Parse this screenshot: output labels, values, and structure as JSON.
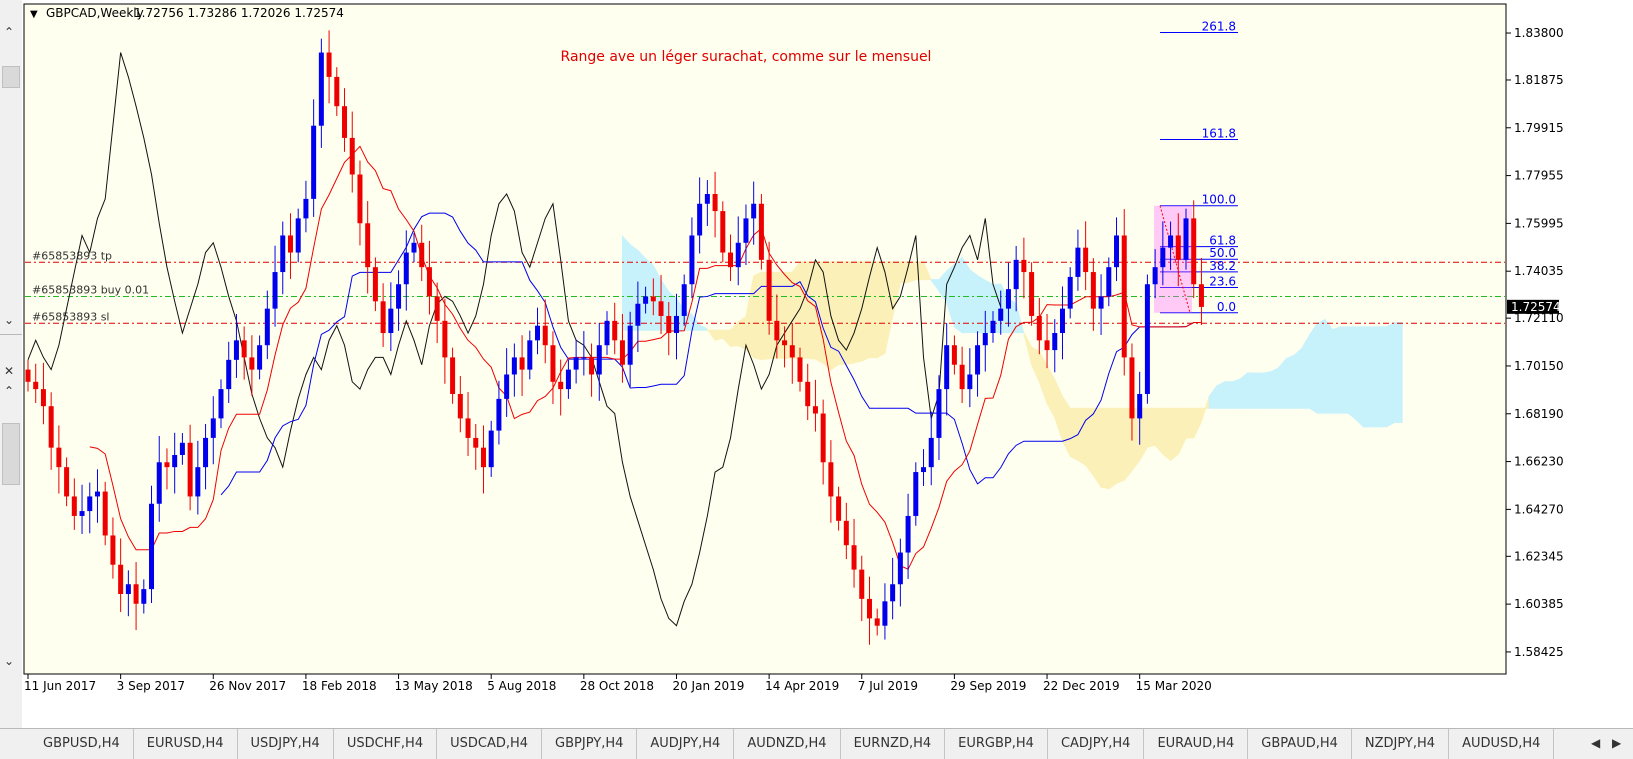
{
  "header": {
    "symbol": "GBPCAD,Weekly",
    "ohlc": "1.72756 1.73286 1.72026 1.72574"
  },
  "annotation": "Range ave un léger surachat, comme sur le mensuel",
  "orders": [
    {
      "label": "#65853893 tp",
      "price": 1.744,
      "color": "#e00000"
    },
    {
      "label": "#65853893 buy 0.01",
      "price": 1.73,
      "color": "#22bb22"
    },
    {
      "label": "#65853893 sl",
      "price": 1.719,
      "color": "#e00000"
    }
  ],
  "fibonacci": {
    "low": 1.7233,
    "high": 1.7672,
    "color": "#0000ff",
    "levels": [
      {
        "label": "261.8",
        "value": 2.618
      },
      {
        "label": "161.8",
        "value": 1.618
      },
      {
        "label": "100.0",
        "value": 1.0
      },
      {
        "label": "61.8",
        "value": 0.618
      },
      {
        "label": "50.0",
        "value": 0.5
      },
      {
        "label": "38.2",
        "value": 0.382
      },
      {
        "label": "23.6",
        "value": 0.236
      },
      {
        "label": "0.0",
        "value": 0.0
      }
    ]
  },
  "chart_data": {
    "type": "candlestick",
    "title": "GBPCAD,Weekly",
    "x_start": "11 Jun 2017",
    "interval": "1 week",
    "ylim": [
      1.5752,
      1.8499
    ],
    "grid": false,
    "x_ticks": [
      {
        "label": "11 Jun 2017",
        "index": 0
      },
      {
        "label": "3 Sep 2017",
        "index": 12
      },
      {
        "label": "26 Nov 2017",
        "index": 24
      },
      {
        "label": "18 Feb 2018",
        "index": 36
      },
      {
        "label": "13 May 2018",
        "index": 48
      },
      {
        "label": "5 Aug 2018",
        "index": 60
      },
      {
        "label": "28 Oct 2018",
        "index": 72
      },
      {
        "label": "20 Jan 2019",
        "index": 84
      },
      {
        "label": "14 Apr 2019",
        "index": 96
      },
      {
        "label": "7 Jul 2019",
        "index": 108
      },
      {
        "label": "29 Sep 2019",
        "index": 120
      },
      {
        "label": "22 Dec 2019",
        "index": 132
      },
      {
        "label": "15 Mar 2020",
        "index": 144
      }
    ],
    "y_ticks": [
      "1.83800",
      "1.81875",
      "1.79915",
      "1.77955",
      "1.75995",
      "1.74035",
      "1.72110",
      "1.70150",
      "1.68190",
      "1.66230",
      "1.64270",
      "1.62345",
      "1.60385",
      "1.58425"
    ],
    "current_price": "1.72574",
    "close": [
      1.695,
      1.692,
      1.685,
      1.668,
      1.66,
      1.648,
      1.64,
      1.642,
      1.648,
      1.65,
      1.632,
      1.62,
      1.608,
      1.612,
      1.604,
      1.61,
      1.645,
      1.662,
      1.66,
      1.665,
      1.67,
      1.648,
      1.66,
      1.672,
      1.68,
      1.692,
      1.704,
      1.712,
      1.705,
      1.7,
      1.71,
      1.725,
      1.74,
      1.755,
      1.748,
      1.762,
      1.77,
      1.8,
      1.83,
      1.82,
      1.808,
      1.795,
      1.78,
      1.76,
      1.742,
      1.728,
      1.715,
      1.725,
      1.735,
      1.748,
      1.752,
      1.742,
      1.73,
      1.72,
      1.705,
      1.69,
      1.68,
      1.672,
      1.668,
      1.66,
      1.675,
      1.688,
      1.698,
      1.705,
      1.7,
      1.712,
      1.718,
      1.71,
      1.695,
      1.692,
      1.7,
      1.705,
      1.705,
      1.698,
      1.71,
      1.72,
      1.712,
      1.702,
      1.718,
      1.727,
      1.73,
      1.728,
      1.722,
      1.715,
      1.722,
      1.735,
      1.755,
      1.768,
      1.772,
      1.765,
      1.748,
      1.742,
      1.752,
      1.762,
      1.768,
      1.745,
      1.72,
      1.712,
      1.71,
      1.705,
      1.695,
      1.685,
      1.682,
      1.662,
      1.648,
      1.638,
      1.628,
      1.618,
      1.606,
      1.598,
      1.595,
      1.605,
      1.612,
      1.625,
      1.64,
      1.658,
      1.66,
      1.672,
      1.692,
      1.71,
      1.702,
      1.692,
      1.698,
      1.71,
      1.715,
      1.72,
      1.725,
      1.733,
      1.745,
      1.74,
      1.722,
      1.712,
      1.708,
      1.715,
      1.725,
      1.738,
      1.75,
      1.74,
      1.725,
      1.73,
      1.742,
      1.755,
      1.705,
      1.68,
      1.69,
      1.735,
      1.742,
      1.75,
      1.755,
      1.745,
      1.762,
      1.735,
      1.7257
    ]
  }
}
